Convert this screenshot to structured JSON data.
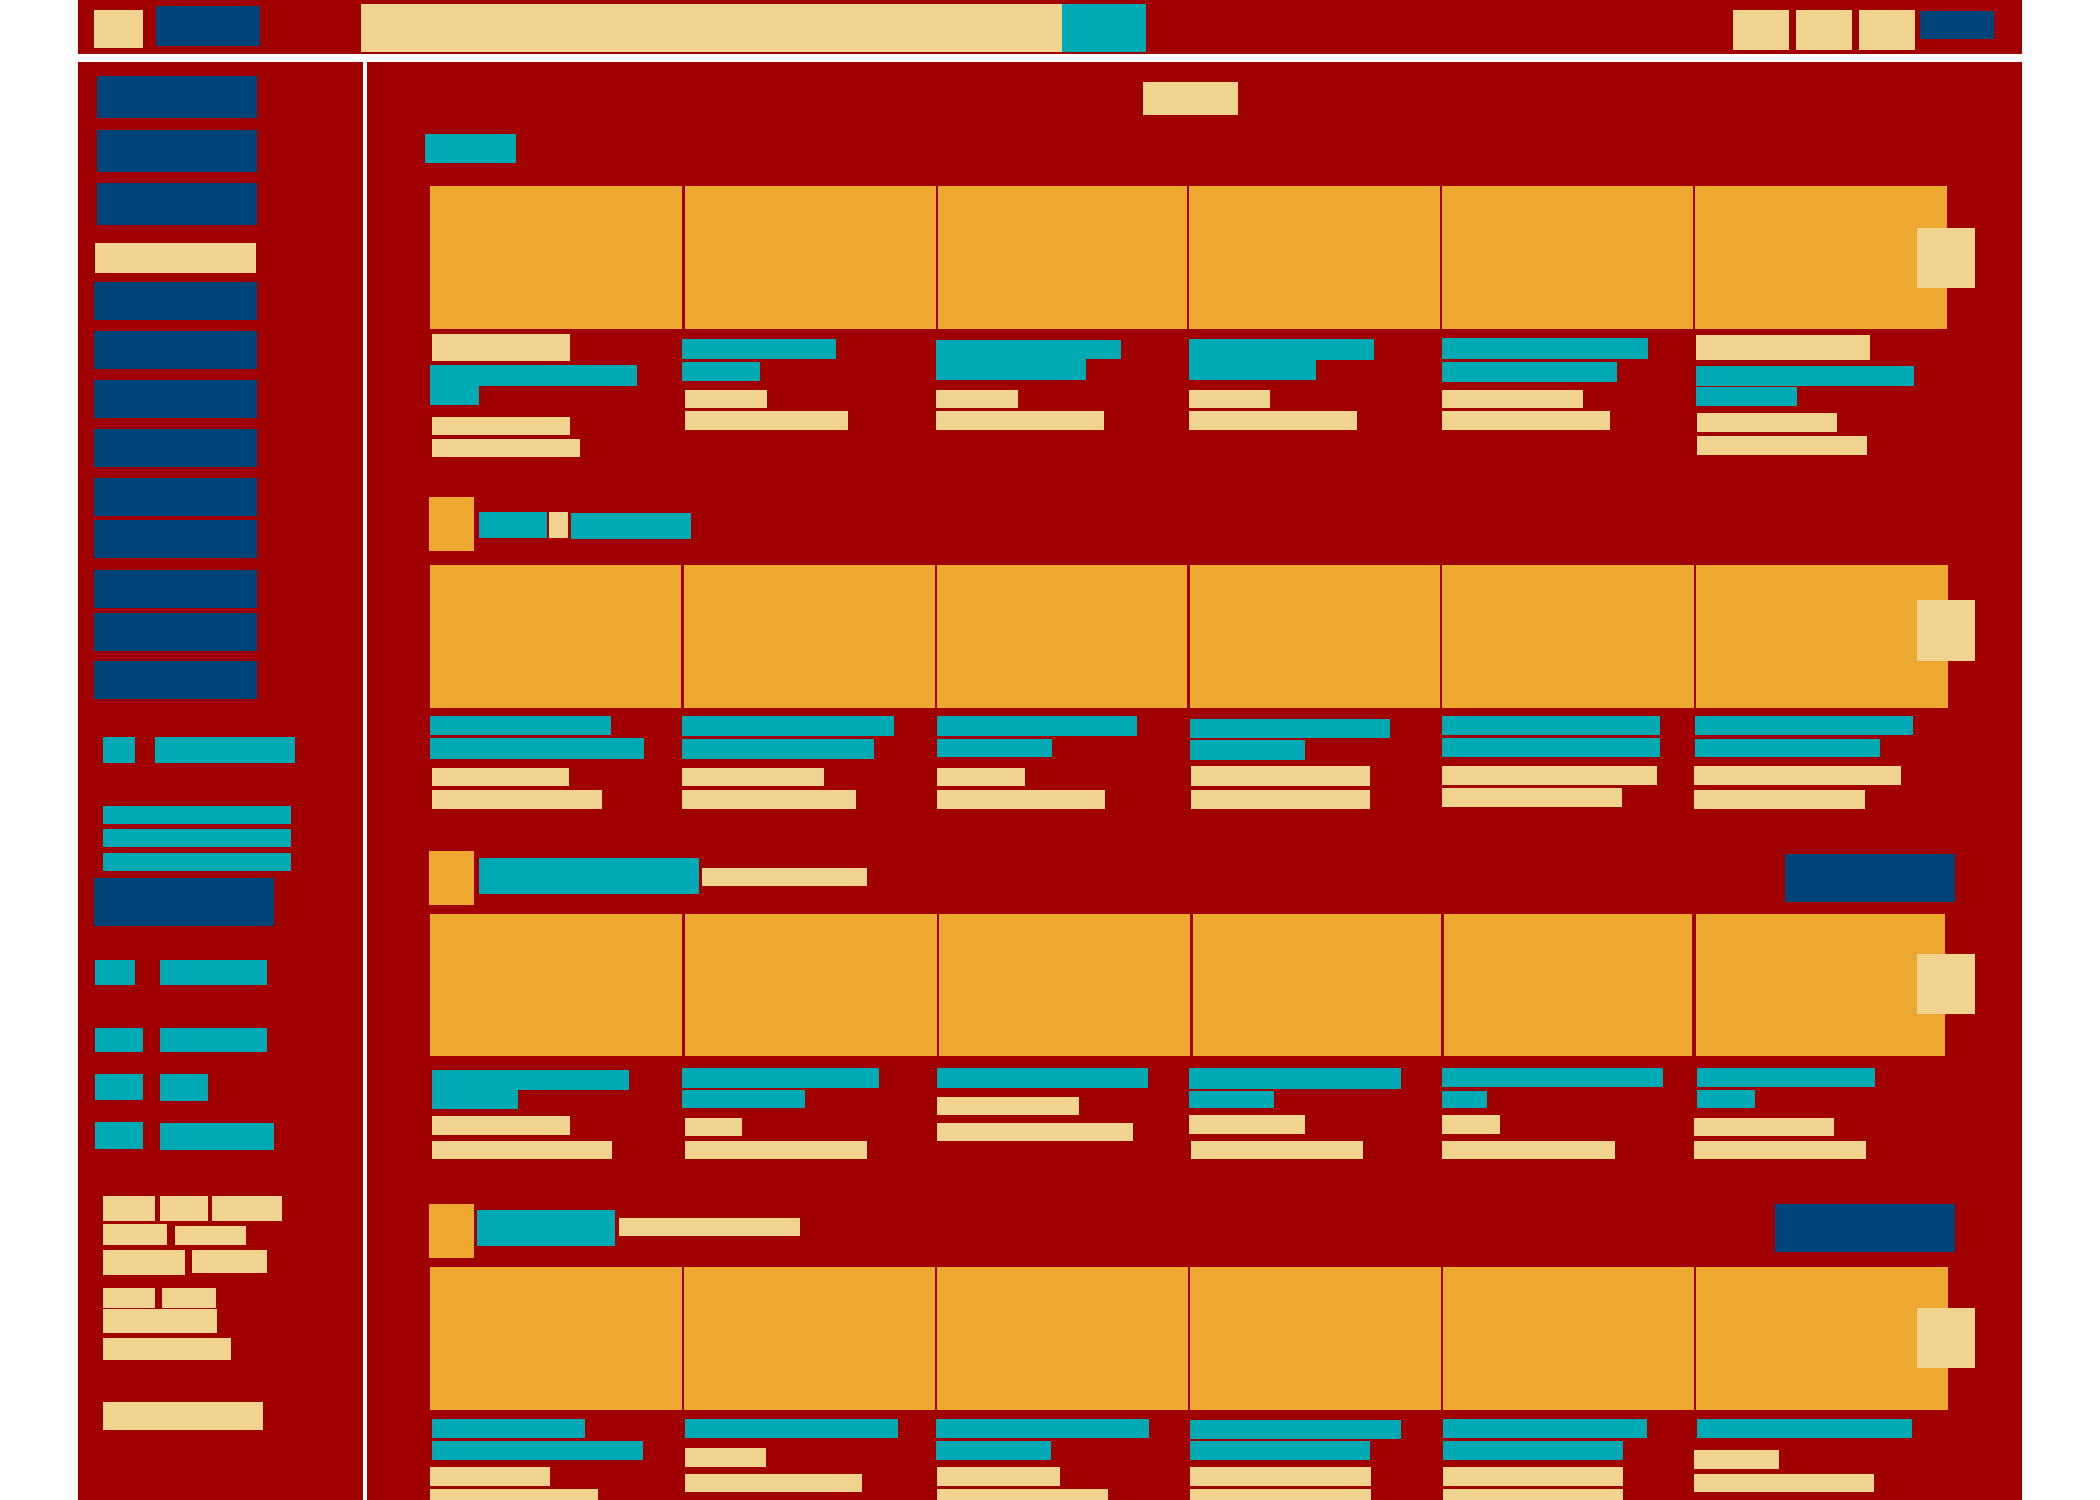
{
  "colors": {
    "frame": "#a00000",
    "nav": "#00457a",
    "accent": "#00aab5",
    "light": "#f0d38f",
    "card": "#eda830"
  },
  "topbar": {
    "logo_icon": "logo-icon",
    "brand": "",
    "search_placeholder": "",
    "search_button_icon": "search-icon",
    "actions": [
      "",
      "",
      ""
    ],
    "account": ""
  },
  "sidebar": {
    "nav_items": [
      "",
      "",
      "",
      "",
      "",
      "",
      "",
      "",
      "",
      "",
      "",
      "",
      ""
    ],
    "active_index": 3,
    "filters": [
      "",
      "",
      "",
      "",
      "",
      ""
    ],
    "tags": [
      "",
      "",
      "",
      "",
      "",
      "",
      "",
      "",
      "",
      ""
    ]
  },
  "main": {
    "page_title": "",
    "section_label": "",
    "shelves": [
      {
        "title": "",
        "subtitle": "",
        "action": ""
      },
      {
        "title": "",
        "subtitle": "",
        "action": ""
      },
      {
        "title": "",
        "subtitle": "",
        "action": ""
      },
      {
        "title": "",
        "subtitle": "",
        "action": ""
      }
    ]
  }
}
